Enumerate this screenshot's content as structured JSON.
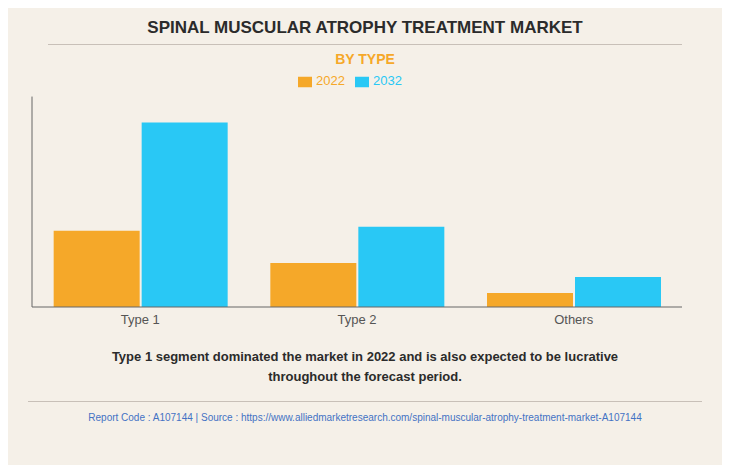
{
  "chart_data": {
    "type": "bar",
    "title": "SPINAL MUSCULAR ATROPHY TREATMENT MARKET",
    "subtitle": "BY TYPE",
    "categories": [
      "Type 1",
      "Type 2",
      "Others"
    ],
    "series": [
      {
        "name": "2022",
        "color": "#F5A829",
        "values": [
          0.38,
          0.22,
          0.07
        ]
      },
      {
        "name": "2032",
        "color": "#29C8F5",
        "values": [
          0.92,
          0.4,
          0.15
        ]
      }
    ],
    "ylim": [
      0,
      1.05
    ],
    "grid": false,
    "legend": "top",
    "tick_labels": "x",
    "annotations": [
      "Type 1 segment dominated the market in 2022 and is also expected to be lucrative\nthroughout the forecast period.",
      "Report Code : A107144  |  Source : https://www.alliedmarketresearch.com/spinal-muscular-atrophy-treatment-market-A107144"
    ]
  }
}
